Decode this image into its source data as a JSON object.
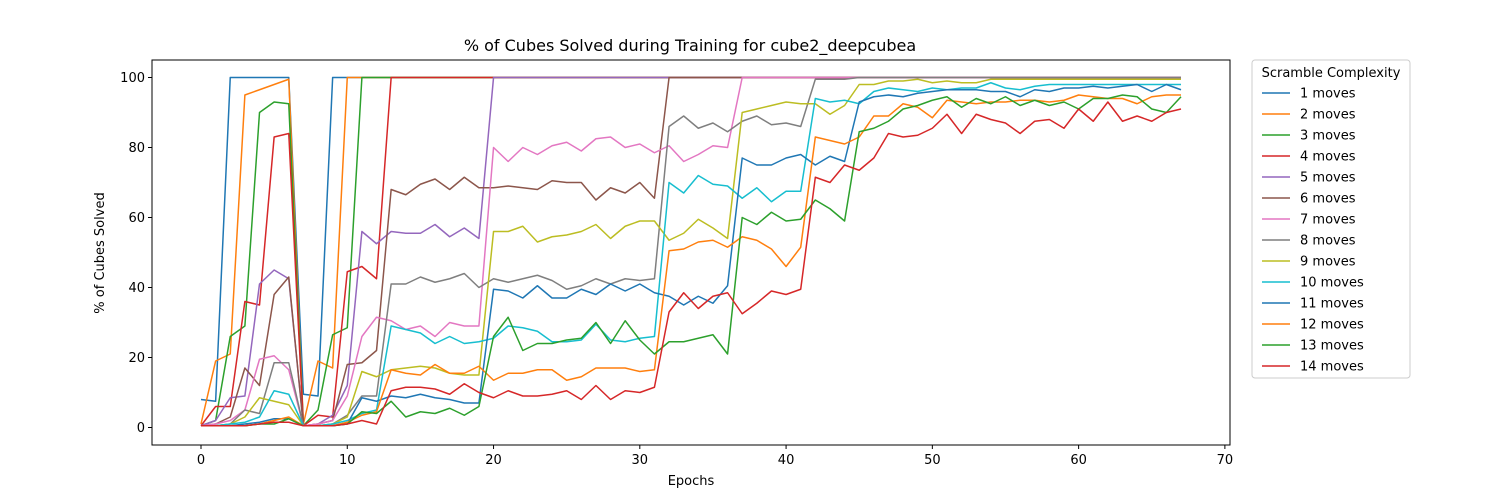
{
  "chart_data": {
    "type": "line",
    "title": "% of Cubes Solved during Training for cube2_deepcubea",
    "xlabel": "Epochs",
    "ylabel": "% of Cubes Solved",
    "xlim": [
      -3.35,
      70.35
    ],
    "ylim": [
      -5,
      105
    ],
    "xticks": [
      0,
      10,
      20,
      30,
      40,
      50,
      60,
      70
    ],
    "yticks": [
      0,
      20,
      40,
      60,
      80,
      100
    ],
    "grid": false,
    "legend": {
      "title": "Scramble Complexity",
      "placement": "outside-right-top"
    },
    "x": [
      0,
      1,
      2,
      3,
      4,
      5,
      6,
      7,
      8,
      9,
      10,
      11,
      12,
      13,
      14,
      15,
      16,
      17,
      18,
      19,
      20,
      21,
      22,
      23,
      24,
      25,
      26,
      27,
      28,
      29,
      30,
      31,
      32,
      33,
      34,
      35,
      36,
      37,
      38,
      39,
      40,
      41,
      42,
      43,
      44,
      45,
      46,
      47,
      48,
      49,
      50,
      51,
      52,
      53,
      54,
      55,
      56,
      57,
      58,
      59,
      60,
      61,
      62,
      63,
      64,
      65,
      66,
      67
    ],
    "series": [
      {
        "name": "1 moves",
        "color": "#1f77b4",
        "values": [
          8,
          7.5,
          100,
          100,
          100,
          100,
          100,
          9.5,
          9,
          100,
          100,
          100,
          100,
          100,
          100,
          100,
          100,
          100,
          100,
          100,
          100,
          100,
          100,
          100,
          100,
          100,
          100,
          100,
          100,
          100,
          100,
          100,
          100,
          100,
          100,
          100,
          100,
          100,
          100,
          100,
          100,
          100,
          100,
          100,
          100,
          100,
          100,
          100,
          100,
          100,
          100,
          100,
          100,
          100,
          100,
          100,
          100,
          100,
          100,
          100,
          100,
          100,
          100,
          100,
          100,
          100,
          100,
          100
        ]
      },
      {
        "name": "2 moves",
        "color": "#ff7f0e",
        "values": [
          1,
          19,
          21,
          95,
          96.5,
          98,
          99.5,
          1,
          19,
          17,
          100,
          100,
          100,
          100,
          100,
          100,
          100,
          100,
          100,
          100,
          100,
          100,
          100,
          100,
          100,
          100,
          100,
          100,
          100,
          100,
          100,
          100,
          100,
          100,
          100,
          100,
          100,
          100,
          100,
          100,
          100,
          100,
          100,
          100,
          100,
          100,
          100,
          100,
          100,
          100,
          100,
          100,
          100,
          100,
          100,
          100,
          100,
          100,
          100,
          100,
          100,
          100,
          100,
          100,
          100,
          100,
          100,
          100
        ]
      },
      {
        "name": "3 moves",
        "color": "#2ca02c",
        "values": [
          0.5,
          2,
          26,
          29,
          90,
          93,
          92.5,
          0.5,
          5,
          26.5,
          28.5,
          100,
          100,
          100,
          100,
          100,
          100,
          100,
          100,
          100,
          100,
          100,
          100,
          100,
          100,
          100,
          100,
          100,
          100,
          100,
          100,
          100,
          100,
          100,
          100,
          100,
          100,
          100,
          100,
          100,
          100,
          100,
          100,
          100,
          100,
          100,
          100,
          100,
          100,
          100,
          100,
          100,
          100,
          100,
          100,
          100,
          100,
          100,
          100,
          100,
          100,
          100,
          100,
          100,
          100,
          100,
          100,
          100
        ]
      },
      {
        "name": "4 moves",
        "color": "#d62728",
        "values": [
          0.5,
          6,
          6,
          36,
          35,
          83,
          84,
          0.5,
          3.5,
          3,
          44.5,
          46,
          42.5,
          100,
          100,
          100,
          100,
          100,
          100,
          100,
          100,
          100,
          100,
          100,
          100,
          100,
          100,
          100,
          100,
          100,
          100,
          100,
          100,
          100,
          100,
          100,
          100,
          100,
          100,
          100,
          100,
          100,
          100,
          100,
          100,
          100,
          100,
          100,
          100,
          100,
          100,
          100,
          100,
          100,
          100,
          100,
          100,
          100,
          100,
          100,
          100,
          100,
          100,
          100,
          100,
          100,
          100,
          100
        ]
      },
      {
        "name": "5 moves",
        "color": "#9467bd",
        "values": [
          0.5,
          2,
          8.5,
          9,
          41,
          45,
          42.5,
          0.5,
          1,
          3.5,
          12,
          56,
          52.5,
          56,
          55.5,
          55.5,
          58,
          54.5,
          57,
          54,
          100,
          100,
          100,
          100,
          100,
          100,
          100,
          100,
          100,
          100,
          100,
          100,
          100,
          100,
          100,
          100,
          100,
          100,
          100,
          100,
          100,
          100,
          100,
          100,
          100,
          100,
          100,
          100,
          100,
          100,
          100,
          100,
          100,
          100,
          100,
          100,
          100,
          100,
          100,
          100,
          100,
          100,
          100,
          100,
          100,
          100,
          100,
          100
        ]
      },
      {
        "name": "6 moves",
        "color": "#8c564b",
        "values": [
          0.5,
          1,
          3,
          17,
          12,
          38,
          43,
          0.5,
          1,
          2,
          18,
          18.5,
          22,
          68,
          66.5,
          69.5,
          71,
          68,
          71.5,
          68.5,
          68.5,
          69,
          68.5,
          68,
          70.5,
          70,
          70,
          65,
          68.5,
          67,
          70,
          65.5,
          100,
          100,
          100,
          100,
          100,
          100,
          100,
          100,
          100,
          100,
          100,
          100,
          100,
          100,
          100,
          100,
          100,
          100,
          100,
          100,
          100,
          100,
          100,
          100,
          100,
          100,
          100,
          100,
          100,
          100,
          100,
          100,
          100,
          100,
          100,
          100
        ]
      },
      {
        "name": "7 moves",
        "color": "#e377c2",
        "values": [
          0.5,
          1,
          2,
          5,
          19.5,
          20.5,
          16.5,
          0.5,
          1,
          2,
          9,
          26,
          31.5,
          30.5,
          28,
          29,
          26,
          30,
          29,
          29,
          80,
          76,
          80,
          78,
          80.5,
          81.5,
          79,
          82.5,
          83,
          80,
          81,
          78.5,
          80.5,
          76,
          78,
          80.5,
          80,
          100,
          100,
          100,
          100,
          100,
          100,
          100,
          100,
          100,
          100,
          100,
          100,
          100,
          100,
          100,
          100,
          100,
          100,
          100,
          100,
          100,
          100,
          100,
          100,
          100,
          100,
          100,
          100,
          100,
          100,
          100
        ]
      },
      {
        "name": "8 moves",
        "color": "#7f7f7f",
        "values": [
          0.5,
          0.5,
          1,
          5,
          4,
          18.5,
          18.5,
          0.5,
          0.5,
          1,
          3.5,
          9,
          9,
          41,
          41,
          43,
          41.5,
          42.5,
          44,
          40,
          42.5,
          41.5,
          42.5,
          43.5,
          42,
          39.5,
          40.5,
          42.5,
          41,
          42.5,
          42,
          42.5,
          86,
          89,
          85.5,
          87,
          84.5,
          87.5,
          89,
          86.5,
          87,
          86,
          99.5,
          99.5,
          99.5,
          100,
          100,
          100,
          100,
          100,
          100,
          100,
          100,
          100,
          100,
          100,
          100,
          100,
          100,
          100,
          100,
          100,
          100,
          100,
          100,
          100,
          100,
          100
        ]
      },
      {
        "name": "9 moves",
        "color": "#bcbd22",
        "values": [
          0.5,
          0.5,
          1,
          3,
          8.5,
          7.5,
          6.5,
          0.5,
          0.5,
          1,
          3,
          16,
          14.5,
          16.5,
          17,
          17.5,
          17,
          15.5,
          15,
          15,
          56,
          56,
          57.5,
          53,
          54.5,
          55,
          56,
          58,
          54,
          57.5,
          59,
          59,
          53.5,
          55.5,
          59.5,
          57,
          54,
          90,
          91,
          92,
          93,
          92.5,
          92.5,
          89.5,
          92,
          98,
          98,
          99,
          99,
          99.5,
          98.5,
          99,
          98.5,
          98.5,
          99.5,
          99.5,
          99.5,
          99.5,
          99.5,
          99.5,
          99.5,
          99.5,
          99.5,
          99.5,
          99.5,
          99.5,
          99.5,
          99.5
        ]
      },
      {
        "name": "10 moves",
        "color": "#17becf",
        "values": [
          0.5,
          0.5,
          1,
          1.5,
          3,
          10.5,
          9.5,
          0.5,
          0.5,
          1,
          2,
          4,
          5,
          29,
          28,
          27,
          24,
          26,
          24,
          24.5,
          25.5,
          29,
          28.5,
          27.5,
          24.5,
          24.5,
          25,
          29.5,
          25,
          24.5,
          25.5,
          26,
          70,
          67,
          72,
          69.5,
          69,
          65.5,
          68.5,
          64.5,
          67.5,
          67.5,
          94,
          93,
          93.5,
          92.5,
          96,
          97,
          96.5,
          96,
          97,
          96.5,
          97,
          97,
          98.5,
          97,
          96.5,
          97.5,
          98,
          98,
          98,
          98,
          98,
          98,
          98,
          98,
          98,
          98
        ]
      },
      {
        "name": "11 moves",
        "color": "#1f77b4",
        "values": [
          0.5,
          0.5,
          0.5,
          1,
          1.5,
          2.5,
          2.5,
          0.5,
          0.5,
          0.5,
          1,
          8.5,
          7.5,
          9,
          8.5,
          9.5,
          8.5,
          8,
          7,
          7,
          39.5,
          39,
          37,
          40.5,
          37,
          37,
          39.5,
          38,
          41,
          39,
          41,
          38.5,
          37.5,
          35,
          37.5,
          35.5,
          40.5,
          77,
          75,
          75,
          77,
          78,
          75,
          77.5,
          76,
          93,
          94.5,
          95,
          94.5,
          95.5,
          96,
          96.5,
          96.5,
          96.5,
          96,
          96,
          94.5,
          96.5,
          96,
          97,
          97,
          97.5,
          97,
          97.5,
          98,
          96,
          98,
          96.5
        ]
      },
      {
        "name": "12 moves",
        "color": "#ff7f0e",
        "values": [
          0.5,
          0.5,
          0.5,
          0.5,
          1,
          2,
          3,
          0.5,
          0.5,
          0.5,
          1.5,
          3.5,
          4.5,
          16.5,
          15.5,
          15,
          18,
          15.5,
          15.5,
          17.5,
          13.5,
          15.5,
          15.5,
          16.5,
          16.5,
          13.5,
          14.5,
          17,
          17,
          17,
          16,
          16.5,
          50.5,
          51,
          53,
          53.5,
          51.5,
          54.5,
          53.5,
          51,
          46,
          51.5,
          83,
          82,
          81,
          83,
          89,
          89,
          92.5,
          91.5,
          88.5,
          93.5,
          93,
          92.5,
          93,
          93,
          93.5,
          93.5,
          93,
          93.5,
          95,
          94.5,
          94,
          94,
          92.5,
          94.5,
          95,
          95
        ]
      },
      {
        "name": "13 moves",
        "color": "#2ca02c",
        "values": [
          0.5,
          0.5,
          0.5,
          0.5,
          1,
          1,
          2.5,
          0.5,
          0.5,
          0.5,
          1,
          4.5,
          4,
          7.5,
          3,
          4.5,
          4,
          5.5,
          3.5,
          6,
          26,
          31.5,
          22,
          24,
          24,
          25,
          25.5,
          30,
          24,
          30.5,
          25,
          21,
          24.5,
          24.5,
          25.5,
          26.5,
          21,
          60,
          58,
          61.5,
          59,
          59.5,
          65,
          62.5,
          59,
          84.5,
          85.5,
          87.5,
          91,
          92,
          93.5,
          94.5,
          91.5,
          94,
          92.5,
          94.5,
          92,
          93.5,
          92,
          93,
          91,
          94,
          94,
          95,
          94.5,
          91,
          90,
          94.5
        ]
      },
      {
        "name": "14 moves",
        "color": "#d62728",
        "values": [
          0.5,
          0.5,
          0.5,
          0.5,
          1,
          1.5,
          1.5,
          0.5,
          0.5,
          0.5,
          1,
          2,
          1,
          10.5,
          11.5,
          11.5,
          11,
          9.5,
          12.5,
          10,
          8.5,
          10.5,
          9,
          9,
          9.5,
          10.5,
          8,
          12,
          8,
          10.5,
          10,
          11.5,
          33,
          38.5,
          34,
          37.5,
          38.5,
          32.5,
          35.5,
          39,
          38,
          39.5,
          71.5,
          70,
          75,
          73.5,
          77,
          84,
          83,
          83.5,
          85.5,
          89.5,
          84,
          89.5,
          88,
          87,
          84,
          87.5,
          88,
          85.5,
          91,
          87.5,
          93,
          87.5,
          89,
          87.5,
          90,
          91
        ]
      }
    ]
  }
}
